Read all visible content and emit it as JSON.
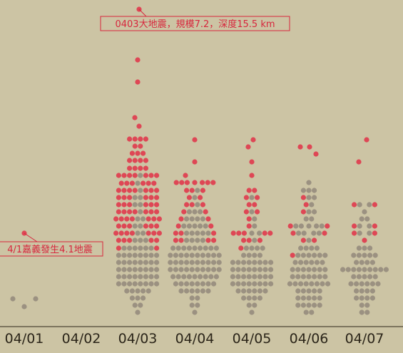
{
  "chart_data": {
    "type": "scatter",
    "subtype": "beeswarm",
    "categories": [
      "04/01",
      "04/02",
      "04/03",
      "04/04",
      "04/05",
      "04/06",
      "04/07"
    ],
    "encoding": "each dot is one earthquake; vertical position = magnitude; red = larger events, grey = smaller events",
    "colors": {
      "large": "#e03a4c",
      "small": "#8f8478",
      "background": "#ccc4a4",
      "annotation": "#d7263d",
      "axis": "#2b2519"
    },
    "annotations": [
      {
        "text": "0403大地震，規模7.2，深度15.5 km",
        "category": "04/03"
      },
      {
        "text": "4/1嘉義發生4.1地震",
        "category": "04/01"
      }
    ],
    "counts_by_day": [
      {
        "day": "04/01",
        "red": 1,
        "grey": 3
      },
      {
        "day": "04/02",
        "red": 0,
        "grey": 0
      },
      {
        "day": "04/03",
        "red": 74,
        "grey": 110
      },
      {
        "day": "04/04",
        "red": 26,
        "grey": 109
      },
      {
        "day": "04/05",
        "red": 28,
        "grey": 65
      },
      {
        "day": "04/06",
        "red": 14,
        "grey": 59
      },
      {
        "day": "04/07",
        "red": 9,
        "grey": 41
      }
    ],
    "xlabel": "",
    "ylabel": ""
  }
}
